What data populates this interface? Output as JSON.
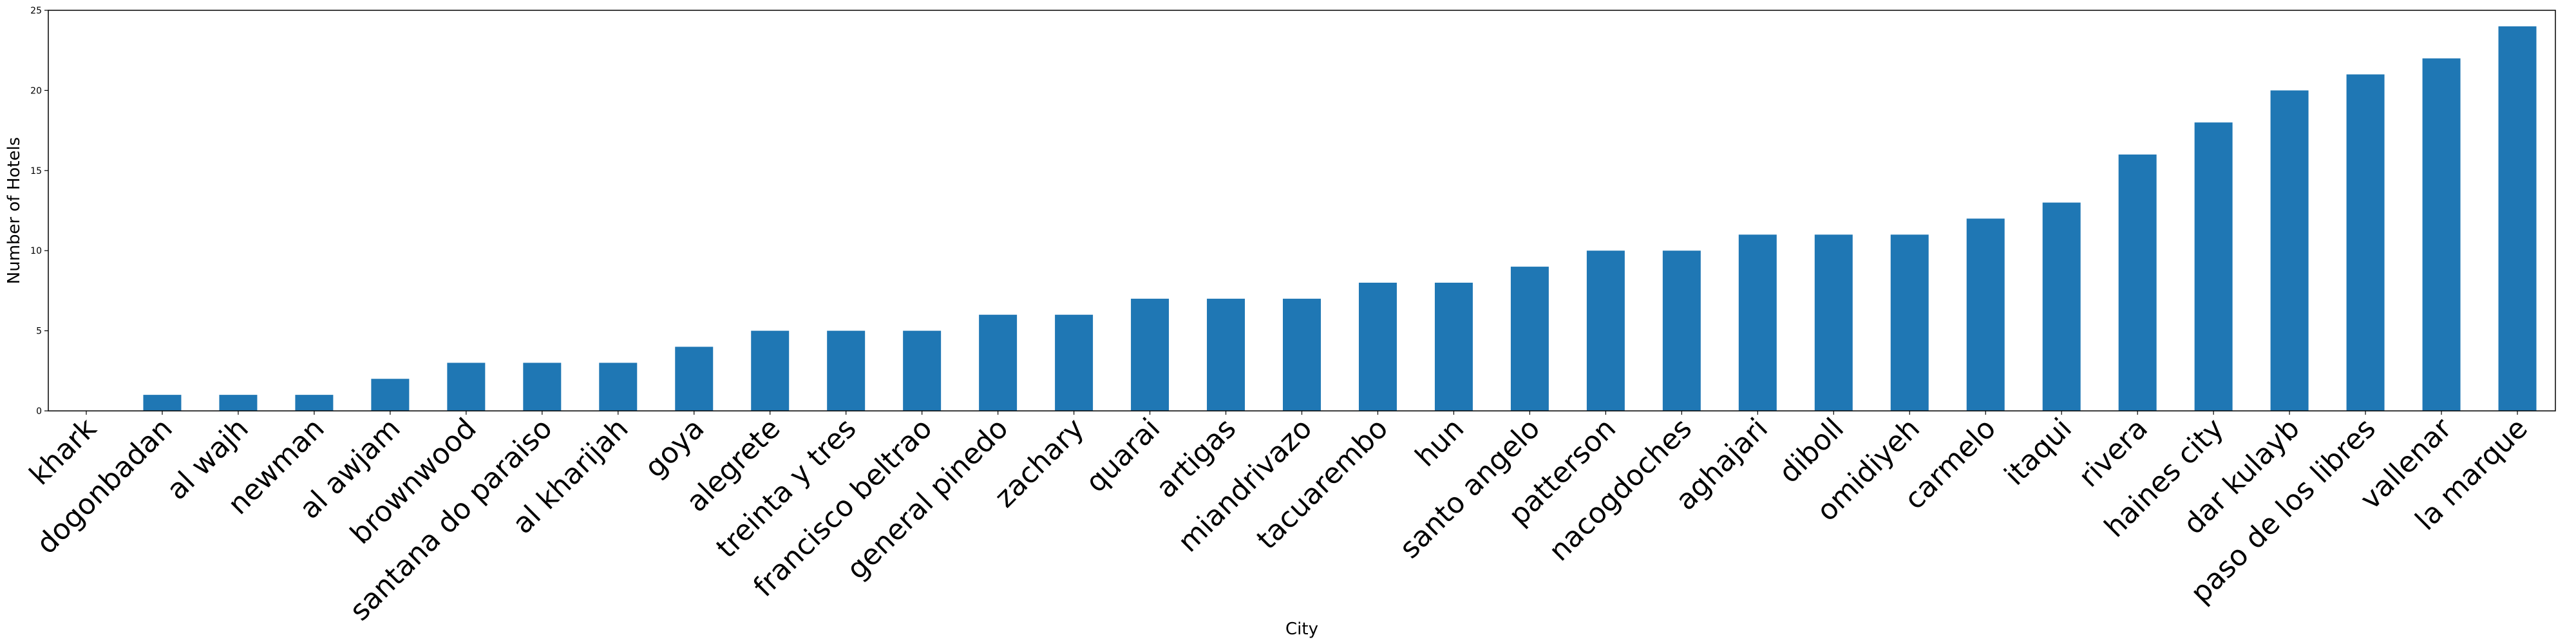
{
  "chart_data": {
    "type": "bar",
    "title": "",
    "xlabel": "City",
    "ylabel": "Number of Hotels",
    "categories": [
      "khark",
      "dogonbadan",
      "al wajh",
      "newman",
      "al awjam",
      "brownwood",
      "santana do paraiso",
      "al kharijah",
      "goya",
      "alegrete",
      "treinta y tres",
      "francisco beltrao",
      "general pinedo",
      "zachary",
      "quarai",
      "artigas",
      "miandrivazo",
      "tacuarembo",
      "hun",
      "santo angelo",
      "patterson",
      "nacogdoches",
      "aghajari",
      "diboll",
      "omidiyeh",
      "carmelo",
      "itaqui",
      "rivera",
      "haines city",
      "dar kulayb",
      "paso de los libres",
      "vallenar",
      "la marque"
    ],
    "values": [
      0,
      1,
      1,
      1,
      2,
      3,
      3,
      3,
      4,
      5,
      5,
      5,
      6,
      6,
      7,
      7,
      7,
      8,
      8,
      9,
      10,
      10,
      11,
      11,
      11,
      12,
      13,
      16,
      18,
      20,
      21,
      22,
      24
    ],
    "ylim": [
      0,
      25
    ],
    "yticks": [
      0,
      5,
      10,
      15,
      20,
      25
    ],
    "grid": false,
    "bar_color": "#1f77b4"
  }
}
